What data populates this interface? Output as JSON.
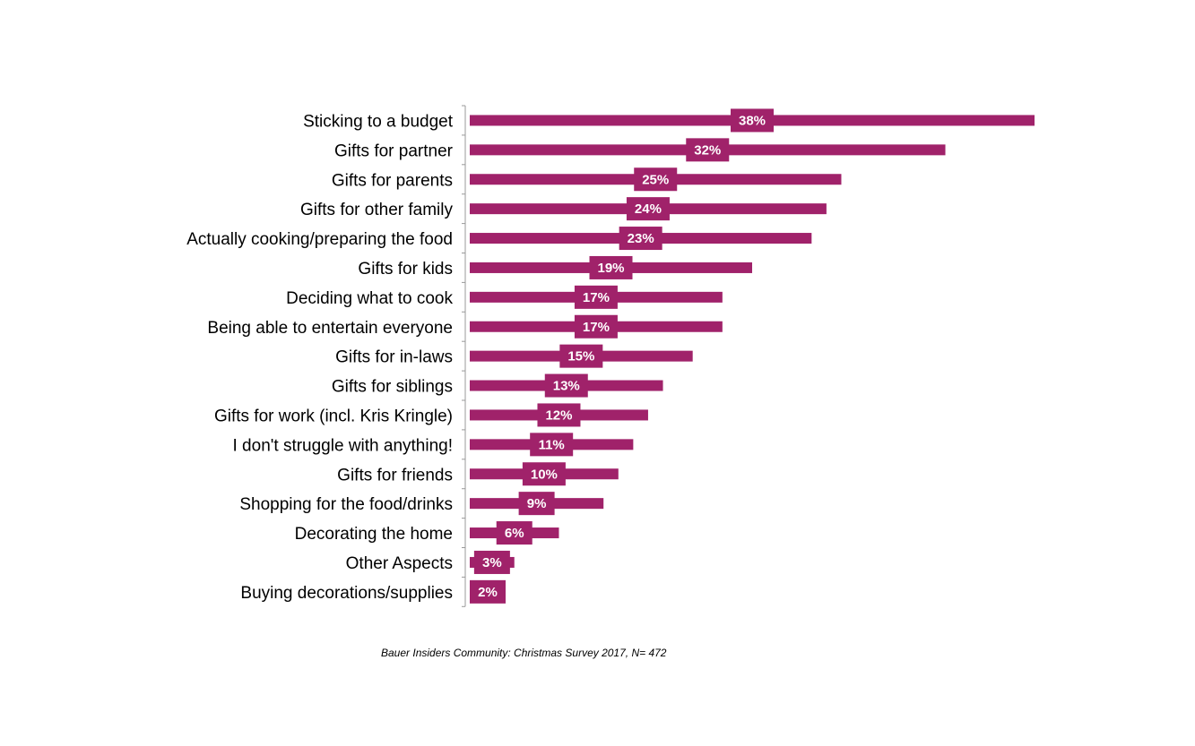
{
  "chart_data": {
    "type": "bar",
    "orientation": "horizontal",
    "categories": [
      "Sticking to a budget",
      "Gifts for partner",
      "Gifts for parents",
      "Gifts for other family",
      "Actually cooking/preparing the food",
      "Gifts for kids",
      "Deciding what to cook",
      "Being able to entertain everyone",
      "Gifts for in-laws",
      "Gifts for siblings",
      "Gifts for work (incl. Kris Kringle)",
      "I don't struggle with anything!",
      "Gifts for friends",
      "Shopping for the food/drinks",
      "Decorating the home",
      "Other Aspects",
      "Buying decorations/supplies"
    ],
    "values": [
      38,
      32,
      25,
      24,
      23,
      19,
      17,
      17,
      15,
      13,
      12,
      11,
      10,
      9,
      6,
      3,
      2
    ],
    "data_labels": [
      "38%",
      "32%",
      "25%",
      "24%",
      "23%",
      "19%",
      "17%",
      "17%",
      "15%",
      "13%",
      "12%",
      "11%",
      "10%",
      "9%",
      "6%",
      "3%",
      "2%"
    ],
    "unit": "%",
    "xlim": [
      0,
      38
    ],
    "grid": false,
    "legend": "none",
    "bar_color": "#A0226A",
    "source": "Bauer Insiders Community: Christmas Survey 2017, N= 472"
  }
}
